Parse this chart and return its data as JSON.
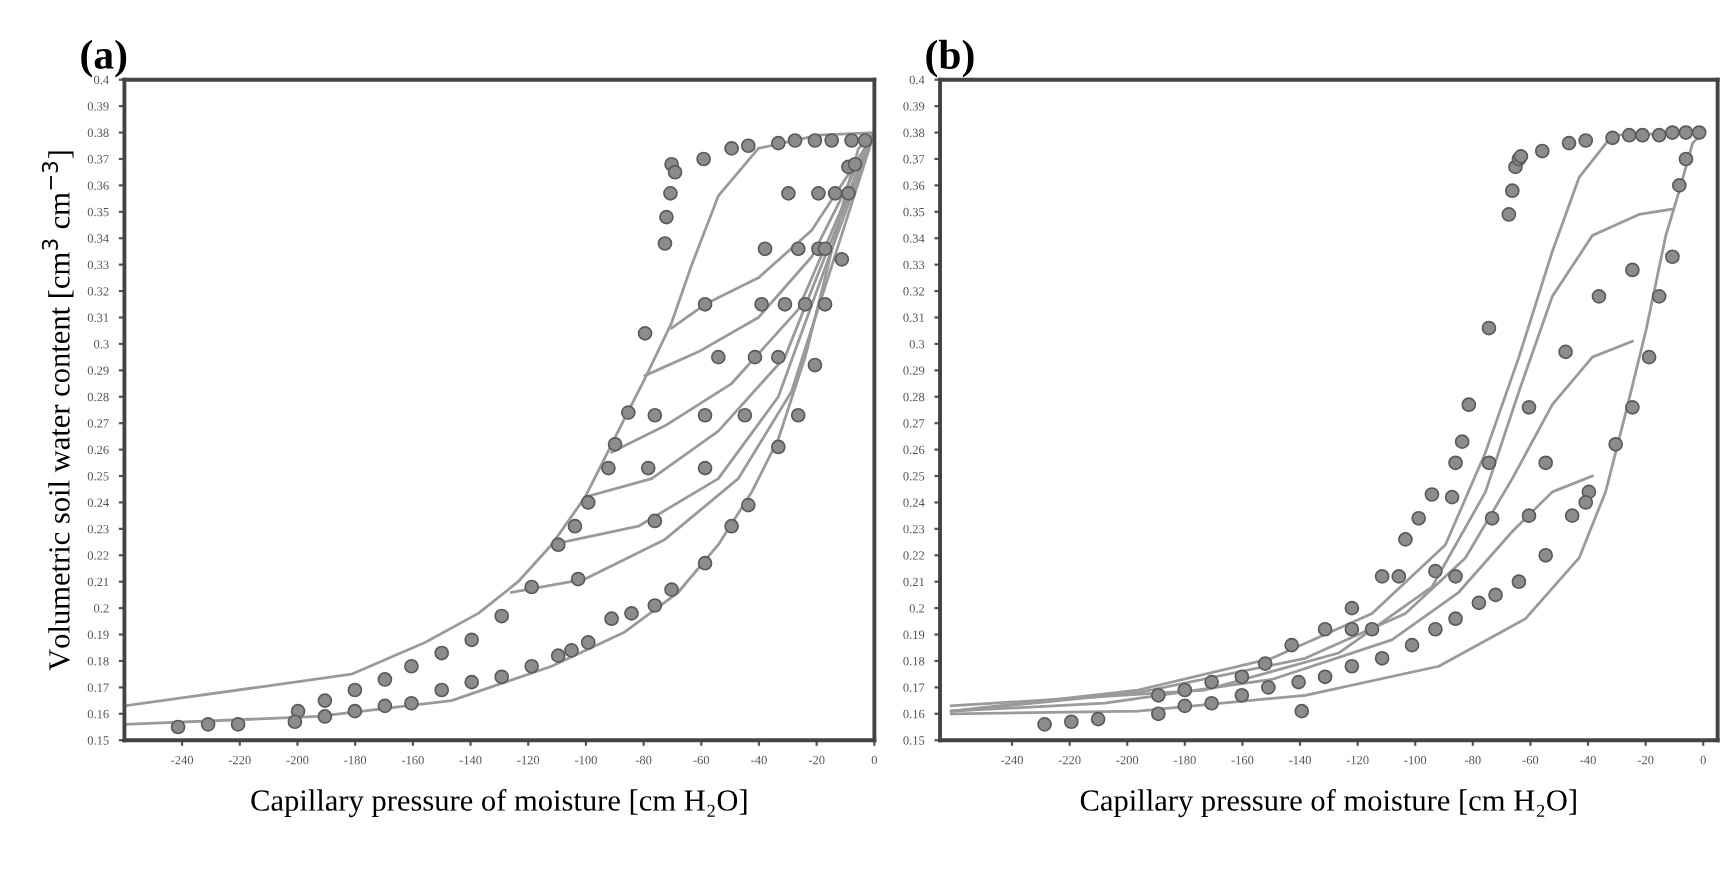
{
  "chart_data": [
    {
      "type": "scatter",
      "title": "(a)",
      "xlabel": "Capillary pressure of moisture [cm H₂O]",
      "ylabel": "Volumetric soil water content [cm$^{3}$ cm$^{−3}$]",
      "xlim": [
        -260,
        0
      ],
      "ylim": [
        0.15,
        0.4
      ],
      "xticks": [
        -240,
        -220,
        -200,
        -180,
        -160,
        -140,
        -120,
        -100,
        -80,
        -60,
        -40,
        -20,
        0
      ],
      "yticks": [
        0.15,
        0.16,
        0.17,
        0.18,
        0.19,
        0.2,
        0.21,
        0.22,
        0.23,
        0.24,
        0.25,
        0.26,
        0.27,
        0.28,
        0.29,
        0.3,
        0.31,
        0.32,
        0.33,
        0.34,
        0.35,
        0.36,
        0.37,
        0.38,
        0.39,
        0.4
      ],
      "grid": false,
      "series": [
        {
          "type": "line",
          "color": "#9a9a9a",
          "x": [
            -259.9,
            -181.3,
            -155.8,
            -137.3,
            -123.5,
            -111.9,
            -100.3,
            -93.4,
            -86.5,
            -79.5,
            -70.3,
            -63.3,
            -54.1,
            -40.2,
            -19.4,
            0
          ],
          "values": [
            0.163,
            0.175,
            0.187,
            0.198,
            0.21,
            0.224,
            0.242,
            0.257,
            0.272,
            0.287,
            0.308,
            0.33,
            0.356,
            0.374,
            0.379,
            0.38
          ]
        },
        {
          "type": "line",
          "color": "#9a9a9a",
          "x": [
            -259.9,
            -192.8,
            -146.6,
            -111.9,
            -86.5,
            -68.0,
            -54.1,
            -42.5,
            -33.3,
            -24.0,
            -17.1,
            -10.2,
            -5.5,
            0
          ],
          "values": [
            0.156,
            0.159,
            0.165,
            0.178,
            0.191,
            0.206,
            0.224,
            0.244,
            0.264,
            0.295,
            0.325,
            0.356,
            0.374,
            0.38
          ]
        },
        {
          "type": "line",
          "color": "#9a9a9a",
          "x": [
            -70.3,
            -58.7,
            -40.2,
            -21.7,
            -7.9,
            0
          ],
          "values": [
            0.306,
            0.315,
            0.325,
            0.343,
            0.366,
            0.38
          ]
        },
        {
          "type": "line",
          "color": "#9a9a9a",
          "x": [
            -79.5,
            -61.0,
            -40.2,
            -21.7,
            0
          ],
          "values": [
            0.288,
            0.297,
            0.31,
            0.333,
            0.38
          ]
        },
        {
          "type": "line",
          "color": "#9a9a9a",
          "x": [
            -91.1,
            -72.6,
            -49.5,
            -26.4,
            0
          ],
          "values": [
            0.259,
            0.269,
            0.285,
            0.313,
            0.38
          ]
        },
        {
          "type": "line",
          "color": "#9a9a9a",
          "x": [
            -100.3,
            -77.2,
            -54.1,
            -31.0,
            0
          ],
          "values": [
            0.242,
            0.249,
            0.267,
            0.295,
            0.38
          ]
        },
        {
          "type": "line",
          "color": "#9a9a9a",
          "x": [
            -111.9,
            -81.8,
            -54.1,
            -33.3,
            0
          ],
          "values": [
            0.224,
            0.231,
            0.249,
            0.28,
            0.38
          ]
        },
        {
          "type": "line",
          "color": "#9a9a9a",
          "x": [
            -125.8,
            -100.3,
            -72.6,
            -47.2,
            -28.7,
            0
          ],
          "values": [
            0.206,
            0.211,
            0.226,
            0.249,
            0.282,
            0.38
          ]
        },
        {
          "marker": "circle",
          "color": "#8c8c8c",
          "x": [
            -70.3,
            -69.1,
            -70.7,
            -72.1,
            -72.6,
            -59.2,
            -49.5,
            -43.7,
            -33.3,
            -27.5,
            -20.6,
            -14.8,
            -7.9,
            -3.2,
            -29.8,
            -19.4,
            -13.6,
            -9.0,
            -9.0,
            -6.7,
            -37.9,
            -26.4,
            -19.4,
            -17.1,
            -11.3,
            -58.7,
            -39.1,
            -31.0,
            -24.0,
            -17.1,
            -79.5,
            -54.1,
            -41.4,
            -33.3,
            -20.6,
            -85.3,
            -76.1,
            -58.7,
            -44.9,
            -26.4,
            -89.9,
            -92.2,
            -78.4,
            -58.7,
            -33.3,
            -99.2,
            -103.8,
            -109.6,
            -76.1,
            -43.7,
            -49.5,
            -58.7,
            -118.8,
            -102.7,
            -129.2,
            -139.6,
            -150.0,
            -160.5,
            -169.7,
            -180.1,
            -190.5,
            -199.8,
            -70.3,
            -76.1,
            -84.2,
            -91.1,
            -99.2,
            -105.0,
            -109.6,
            -118.8,
            -129.2,
            -139.6,
            -150.0,
            -160.5,
            -169.7,
            -180.1,
            -190.5,
            -200.9,
            -220.6,
            -231.0,
            -241.4
          ],
          "values": [
            0.368,
            0.365,
            0.357,
            0.348,
            0.338,
            0.37,
            0.374,
            0.375,
            0.376,
            0.377,
            0.377,
            0.377,
            0.377,
            0.377,
            0.357,
            0.357,
            0.357,
            0.357,
            0.367,
            0.368,
            0.336,
            0.336,
            0.336,
            0.336,
            0.332,
            0.315,
            0.315,
            0.315,
            0.315,
            0.315,
            0.304,
            0.295,
            0.295,
            0.295,
            0.292,
            0.274,
            0.273,
            0.273,
            0.273,
            0.273,
            0.262,
            0.253,
            0.253,
            0.253,
            0.261,
            0.24,
            0.231,
            0.224,
            0.233,
            0.239,
            0.231,
            0.217,
            0.208,
            0.211,
            0.197,
            0.188,
            0.183,
            0.178,
            0.173,
            0.169,
            0.165,
            0.161,
            0.207,
            0.201,
            0.198,
            0.196,
            0.187,
            0.184,
            0.182,
            0.178,
            0.174,
            0.172,
            0.169,
            0.164,
            0.163,
            0.161,
            0.159,
            0.157,
            0.156,
            0.156,
            0.155
          ]
        }
      ]
    },
    {
      "type": "scatter",
      "title": "(b)",
      "xlabel": "Capillary pressure of moisture [cm H₂O]",
      "xlim": [
        -265,
        5
      ],
      "ylim": [
        0.15,
        0.4
      ],
      "xticks": [
        -240,
        -220,
        -200,
        -180,
        -160,
        -140,
        -120,
        -100,
        -80,
        -60,
        -40,
        -20,
        0
      ],
      "yticks": [
        0.15,
        0.16,
        0.17,
        0.18,
        0.19,
        0.2,
        0.21,
        0.22,
        0.23,
        0.24,
        0.25,
        0.26,
        0.27,
        0.28,
        0.29,
        0.3,
        0.31,
        0.32,
        0.33,
        0.34,
        0.35,
        0.36,
        0.37,
        0.38,
        0.39,
        0.4
      ],
      "grid": false,
      "series": [
        {
          "type": "line",
          "color": "#9a9a9a",
          "x": [
            -261.1,
            -196.2,
            -149.8,
            -115.0,
            -89.5,
            -75.6,
            -64.0,
            -52.4,
            -43.1,
            -31.5,
            0
          ],
          "values": [
            0.161,
            0.169,
            0.181,
            0.198,
            0.224,
            0.259,
            0.295,
            0.335,
            0.363,
            0.379,
            0.38
          ]
        },
        {
          "type": "line",
          "color": "#9a9a9a",
          "x": [
            -261.1,
            -196.2,
            -138.2,
            -91.8,
            -61.7,
            -43.1,
            -33.9,
            -26.9,
            -19.9,
            -13.0,
            -8.3,
            -3.7,
            0
          ],
          "values": [
            0.16,
            0.161,
            0.167,
            0.178,
            0.196,
            0.219,
            0.244,
            0.274,
            0.305,
            0.341,
            0.358,
            0.376,
            0.38
          ]
        },
        {
          "type": "line",
          "color": "#9a9a9a",
          "x": [
            -10.7,
            -22.3,
            -38.5,
            -52.4,
            -64.0,
            -75.6,
            -94.2,
            -126.6,
            -173.0,
            -261.1
          ],
          "values": [
            0.351,
            0.349,
            0.341,
            0.318,
            0.282,
            0.244,
            0.208,
            0.183,
            0.169,
            0.163
          ]
        },
        {
          "type": "line",
          "color": "#9a9a9a",
          "x": [
            -24.6,
            -38.5,
            -52.4,
            -66.3,
            -82.6,
            -103.4,
            -138.2,
            -196.2,
            -261.1
          ],
          "values": [
            0.301,
            0.295,
            0.277,
            0.249,
            0.219,
            0.198,
            0.181,
            0.168,
            0.161
          ]
        },
        {
          "type": "line",
          "color": "#9a9a9a",
          "x": [
            -38.5,
            -52.4,
            -66.3,
            -84.9,
            -108.1,
            -149.8,
            -207.8,
            -261.1
          ],
          "values": [
            0.25,
            0.244,
            0.229,
            0.206,
            0.188,
            0.173,
            0.164,
            0.161
          ]
        },
        {
          "marker": "circle",
          "color": "#8c8c8c",
          "x": [
            -67.5,
            -66.3,
            -65.2,
            -64.0,
            -63.3,
            -55.9,
            -46.6,
            -40.8,
            -31.5,
            -25.7,
            -21.1,
            -15.3,
            -10.7,
            -6.0,
            -1.4,
            -6.0,
            -8.3,
            -10.7,
            -24.6,
            -36.2,
            -15.3,
            -74.4,
            -47.8,
            -18.8,
            -81.4,
            -60.5,
            -24.6,
            -83.7,
            -86.0,
            -74.4,
            -54.7,
            -30.4,
            -94.2,
            -98.8,
            -103.4,
            -87.2,
            -73.3,
            -60.5,
            -45.5,
            -39.7,
            -40.8,
            -105.7,
            -111.5,
            -93.0,
            -86.0,
            -54.7,
            -122.0,
            -131.3,
            -122.0,
            -115.0,
            -142.9,
            -152.1,
            -160.2,
            -170.7,
            -180.0,
            -189.2,
            -64.0,
            -72.1,
            -77.9,
            -86.0,
            -93.0,
            -101.1,
            -111.5,
            -122.0,
            -131.3,
            -140.5,
            -151.0,
            -160.2,
            -170.7,
            -180.0,
            -189.2,
            -210.1,
            -219.4,
            -228.7,
            -139.4
          ],
          "values": [
            0.349,
            0.358,
            0.367,
            0.37,
            0.371,
            0.373,
            0.376,
            0.377,
            0.378,
            0.379,
            0.379,
            0.379,
            0.38,
            0.38,
            0.38,
            0.37,
            0.36,
            0.333,
            0.328,
            0.318,
            0.318,
            0.306,
            0.297,
            0.295,
            0.277,
            0.276,
            0.276,
            0.263,
            0.255,
            0.255,
            0.255,
            0.262,
            0.243,
            0.234,
            0.226,
            0.242,
            0.234,
            0.235,
            0.235,
            0.244,
            0.24,
            0.212,
            0.212,
            0.214,
            0.212,
            0.22,
            0.2,
            0.192,
            0.192,
            0.192,
            0.186,
            0.179,
            0.174,
            0.172,
            0.169,
            0.167,
            0.21,
            0.205,
            0.202,
            0.196,
            0.192,
            0.186,
            0.181,
            0.178,
            0.174,
            0.172,
            0.17,
            0.167,
            0.164,
            0.163,
            0.16,
            0.158,
            0.157,
            0.156,
            0.161
          ]
        }
      ]
    }
  ]
}
